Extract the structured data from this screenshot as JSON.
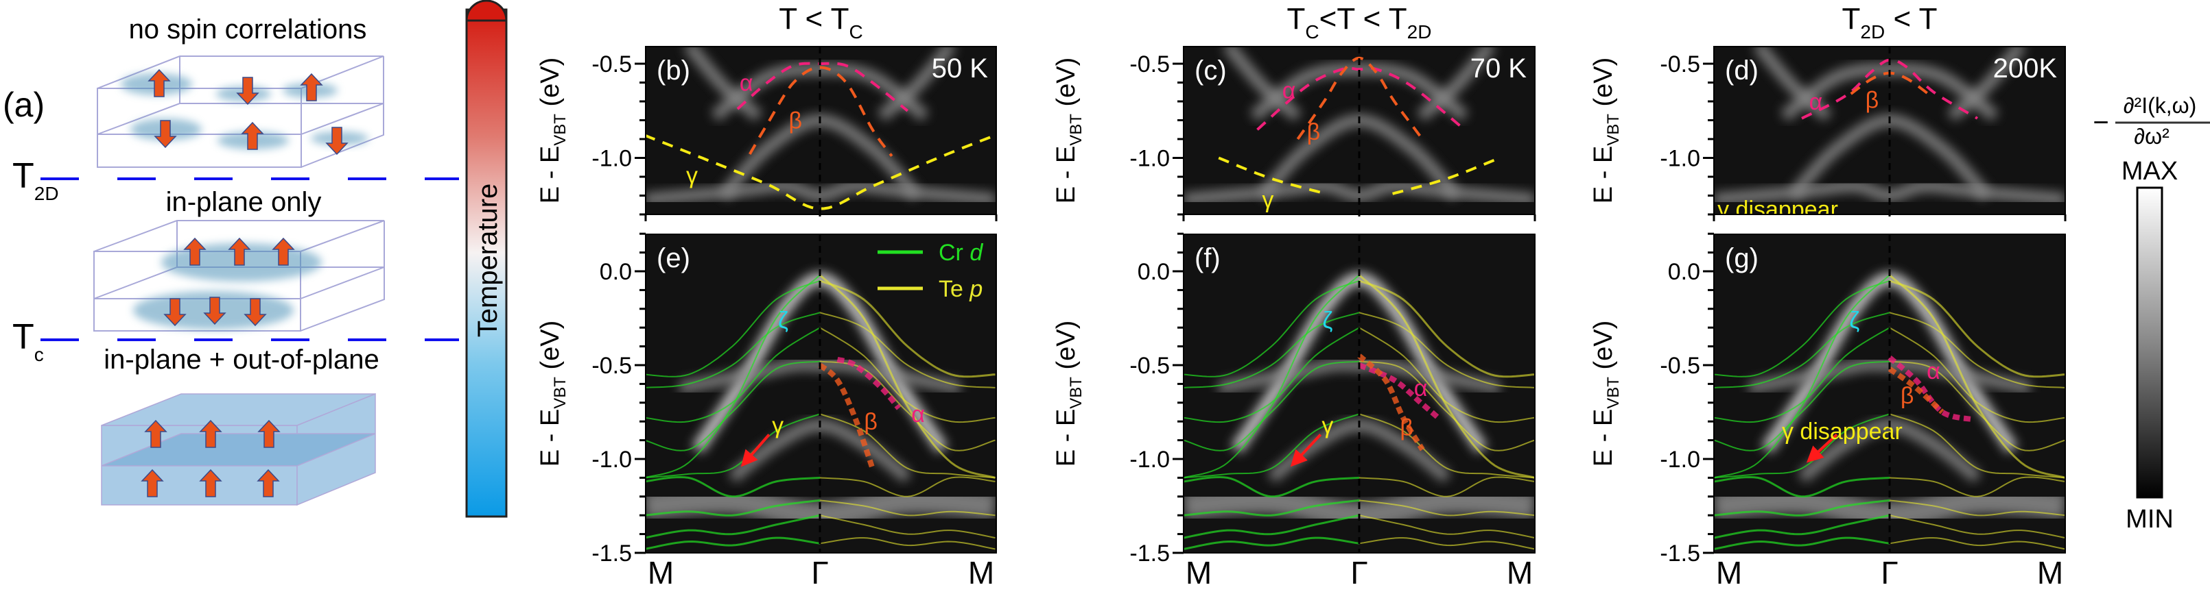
{
  "panel_a": {
    "label": "(a)",
    "phase_top": "no spin correlations",
    "phase_mid": "in-plane only",
    "phase_bottom": "in-plane + out-of-plane",
    "t2d_main": "T",
    "t2d_sub": "2D",
    "tc_main": "T",
    "tc_sub": "c",
    "temperature_bar_label": "Temperature",
    "arrow_color": "#e8521a",
    "cloud_color": "#4f93b8"
  },
  "colorbar": {
    "minus": "−",
    "numerator": "∂²I(k,ω)",
    "denominator": "∂ω²",
    "max_label": "MAX",
    "min_label": "MIN"
  },
  "colors": {
    "alpha": "#f0207a",
    "beta": "#f05a1e",
    "gamma": "#f5ea14",
    "zeta": "#22d8ea",
    "cr_d": "#22e022",
    "te_p": "#e6e62e",
    "arrow": "#ff1a1a"
  },
  "chart_data": {
    "type": "line",
    "xlabel_ticks": [
      "M",
      "Γ",
      "M"
    ],
    "ylabel": {
      "main": "E - E",
      "sub": "VBT",
      "unit": " (eV)"
    },
    "k_range": [
      -1,
      1
    ],
    "top_ylim": [
      -1.3,
      -0.41
    ],
    "bottom_ylim": [
      -1.5,
      0.2
    ],
    "top_yticks": [
      "-0.5",
      "-1.0"
    ],
    "bottom_yticks": [
      "0.0",
      "-0.5",
      "-1.0",
      "-1.5"
    ],
    "legend": [
      {
        "name": "Cr",
        "italic": "d",
        "color_key": "cr_d"
      },
      {
        "name": "Te",
        "italic": "p",
        "color_key": "te_p"
      }
    ],
    "columns": [
      {
        "title": [
          {
            "t": "T < T"
          },
          {
            "t": "C",
            "sub": true
          }
        ],
        "top": {
          "label": "(b)",
          "temp": "50 K",
          "dashed": [
            {
              "name": "alpha",
              "pts": [
                [
                  -0.47,
                  -0.74
                ],
                [
                  -0.3,
                  -0.6
                ],
                [
                  -0.15,
                  -0.51
                ],
                [
                  0,
                  -0.5
                ],
                [
                  0.15,
                  -0.51
                ],
                [
                  0.3,
                  -0.6
                ],
                [
                  0.5,
                  -0.75
                ]
              ]
            },
            {
              "name": "beta",
              "pts": [
                [
                  -0.4,
                  -0.98
                ],
                [
                  -0.3,
                  -0.82
                ],
                [
                  -0.15,
                  -0.6
                ],
                [
                  0,
                  -0.52
                ],
                [
                  0.15,
                  -0.6
                ],
                [
                  0.3,
                  -0.85
                ],
                [
                  0.41,
                  -0.99
                ]
              ]
            },
            {
              "name": "gamma",
              "pts": [
                [
                  -1,
                  -0.88
                ],
                [
                  -0.7,
                  -0.99
                ],
                [
                  -0.3,
                  -1.14
                ],
                [
                  0,
                  -1.27
                ],
                [
                  0.3,
                  -1.15
                ],
                [
                  0.7,
                  -0.99
                ],
                [
                  1,
                  -0.88
                ]
              ]
            }
          ],
          "labels": [
            {
              "t": "α",
              "c": "alpha",
              "k": -0.42,
              "E": -0.6
            },
            {
              "t": "β",
              "c": "beta",
              "k": -0.14,
              "E": -0.8
            },
            {
              "t": "γ",
              "c": "gamma",
              "k": -0.73,
              "E": -1.09
            }
          ]
        },
        "bottom": {
          "label": "(e)",
          "legend": true,
          "dashed": [
            {
              "name": "alpha",
              "pts": [
                [
                  0.1,
                  -0.47
                ],
                [
                  0.2,
                  -0.5
                ],
                [
                  0.35,
                  -0.62
                ],
                [
                  0.45,
                  -0.73
                ]
              ]
            },
            {
              "name": "beta",
              "pts": [
                [
                  0,
                  -0.5
                ],
                [
                  0.1,
                  -0.58
                ],
                [
                  0.2,
                  -0.78
                ],
                [
                  0.3,
                  -1.05
                ]
              ]
            }
          ],
          "labels": [
            {
              "t": "ζ",
              "c": "zeta",
              "k": -0.21,
              "E": -0.26
            },
            {
              "t": "γ",
              "c": "gamma",
              "k": -0.24,
              "E": -0.82
            },
            {
              "t": "α",
              "c": "alpha",
              "k": 0.56,
              "E": -0.76
            },
            {
              "t": "β",
              "c": "beta",
              "k": 0.29,
              "E": -0.8
            }
          ],
          "arrow": [
            [
              -0.29,
              -0.87
            ],
            [
              -0.43,
              -1.02
            ]
          ]
        }
      },
      {
        "title": [
          {
            "t": "T"
          },
          {
            "t": "C",
            "sub": true
          },
          {
            "t": "<T < T"
          },
          {
            "t": "2D",
            "sub": true
          }
        ],
        "top": {
          "label": "(c)",
          "temp": "70 K",
          "dashed": [
            {
              "name": "alpha",
              "pts": [
                [
                  -0.58,
                  -0.85
                ],
                [
                  -0.3,
                  -0.62
                ],
                [
                  -0.1,
                  -0.53
                ],
                [
                  0,
                  -0.53
                ],
                [
                  0.1,
                  -0.53
                ],
                [
                  0.3,
                  -0.62
                ],
                [
                  0.6,
                  -0.85
                ]
              ]
            },
            {
              "name": "beta",
              "pts": [
                [
                  -0.35,
                  -0.9
                ],
                [
                  -0.2,
                  -0.7
                ],
                [
                  -0.1,
                  -0.55
                ],
                [
                  0,
                  -0.47
                ],
                [
                  0.1,
                  -0.55
                ],
                [
                  0.2,
                  -0.7
                ],
                [
                  0.36,
                  -0.9
                ]
              ]
            },
            {
              "name": "gamma",
              "pts": [
                [
                  -0.8,
                  -1.0
                ],
                [
                  -0.5,
                  -1.11
                ],
                [
                  -0.19,
                  -1.19
                ]
              ]
            },
            {
              "name": "gamma",
              "pts": [
                [
                  0.19,
                  -1.19
                ],
                [
                  0.5,
                  -1.11
                ],
                [
                  0.8,
                  -1.0
                ]
              ]
            }
          ],
          "labels": [
            {
              "t": "α",
              "c": "alpha",
              "k": -0.4,
              "E": -0.64
            },
            {
              "t": "β",
              "c": "beta",
              "k": -0.26,
              "E": -0.86
            },
            {
              "t": "γ",
              "c": "gamma",
              "k": -0.52,
              "E": -1.22
            }
          ]
        },
        "bottom": {
          "label": "(f)",
          "dashed": [
            {
              "name": "alpha",
              "pts": [
                [
                  0,
                  -0.5
                ],
                [
                  0.2,
                  -0.58
                ],
                [
                  0.35,
                  -0.7
                ],
                [
                  0.45,
                  -0.78
                ]
              ]
            },
            {
              "name": "beta",
              "pts": [
                [
                  0,
                  -0.45
                ],
                [
                  0.15,
                  -0.58
                ],
                [
                  0.25,
                  -0.78
                ],
                [
                  0.36,
                  -0.95
                ]
              ]
            }
          ],
          "labels": [
            {
              "t": "ζ",
              "c": "zeta",
              "k": -0.18,
              "E": -0.26
            },
            {
              "t": "γ",
              "c": "gamma",
              "k": -0.18,
              "E": -0.82
            },
            {
              "t": "α",
              "c": "alpha",
              "k": 0.35,
              "E": -0.62
            },
            {
              "t": "β",
              "c": "beta",
              "k": 0.27,
              "E": -0.83
            }
          ],
          "arrow": [
            [
              -0.22,
              -0.87
            ],
            [
              -0.37,
              -1.02
            ]
          ]
        }
      },
      {
        "title": [
          {
            "t": "T"
          },
          {
            "t": "2D",
            "sub": true
          },
          {
            "t": " < T"
          }
        ],
        "top": {
          "label": "(d)",
          "temp": "200K",
          "dashed": [
            {
              "name": "alpha",
              "pts": [
                [
                  -0.5,
                  -0.79
                ],
                [
                  -0.25,
                  -0.67
                ],
                [
                  -0.1,
                  -0.54
                ],
                [
                  0,
                  -0.48
                ],
                [
                  0.1,
                  -0.52
                ],
                [
                  0.25,
                  -0.65
                ],
                [
                  0.5,
                  -0.79
                ]
              ]
            },
            {
              "name": "beta",
              "pts": [
                [
                  -0.22,
                  -0.66
                ],
                [
                  -0.1,
                  -0.58
                ],
                [
                  0,
                  -0.55
                ],
                [
                  0.1,
                  -0.58
                ],
                [
                  0.22,
                  -0.66
                ]
              ]
            }
          ],
          "labels": [
            {
              "t": "α",
              "c": "alpha",
              "k": -0.42,
              "E": -0.7
            },
            {
              "t": "β",
              "c": "beta",
              "k": -0.1,
              "E": -0.69
            },
            {
              "t": "γ disappear",
              "c": "gamma",
              "k": -0.98,
              "E": -1.27,
              "left": true
            }
          ]
        },
        "bottom": {
          "label": "(g)",
          "dashed": [
            {
              "name": "alpha",
              "pts": [
                [
                  0,
                  -0.46
                ],
                [
                  0.15,
                  -0.58
                ],
                [
                  0.3,
                  -0.75
                ],
                [
                  0.48,
                  -0.79
                ]
              ]
            },
            {
              "name": "beta",
              "pts": [
                [
                  0,
                  -0.52
                ],
                [
                  0.15,
                  -0.62
                ],
                [
                  0.3,
                  -0.75
                ]
              ]
            }
          ],
          "labels": [
            {
              "t": "ζ",
              "c": "zeta",
              "k": -0.2,
              "E": -0.26
            },
            {
              "t": "γ disappear",
              "c": "gamma",
              "k": -0.27,
              "E": -0.85
            },
            {
              "t": "α",
              "c": "alpha",
              "k": 0.25,
              "E": -0.53
            },
            {
              "t": "β",
              "c": "beta",
              "k": 0.1,
              "E": -0.66
            }
          ],
          "arrow": [
            [
              -0.3,
              -0.87
            ],
            [
              -0.45,
              -1.0
            ]
          ]
        }
      }
    ],
    "intensity_ridges_top": [
      [
        [
          -1,
          -1.22
        ],
        [
          -0.5,
          -1.18
        ],
        [
          -0.2,
          -1.15
        ],
        [
          0,
          -1.2
        ],
        [
          0.2,
          -1.15
        ],
        [
          0.5,
          -1.18
        ],
        [
          1,
          -1.22
        ]
      ],
      [
        [
          -0.55,
          -1.2
        ],
        [
          -0.3,
          -0.95
        ],
        [
          0,
          -0.8
        ],
        [
          0.3,
          -0.95
        ],
        [
          0.55,
          -1.2
        ]
      ],
      [
        [
          -0.6,
          -0.78
        ],
        [
          -0.3,
          -0.57
        ],
        [
          0,
          -0.53
        ],
        [
          0.3,
          -0.57
        ],
        [
          0.6,
          -0.78
        ]
      ],
      [
        [
          -0.75,
          -0.4
        ],
        [
          -0.55,
          -0.62
        ],
        [
          -0.35,
          -0.78
        ]
      ],
      [
        [
          0.75,
          -0.4
        ],
        [
          0.55,
          -0.62
        ],
        [
          0.35,
          -0.78
        ]
      ]
    ],
    "intensity_ridges_bottom": [
      [
        [
          -0.7,
          -0.95
        ],
        [
          -0.45,
          -0.6
        ],
        [
          -0.2,
          -0.2
        ],
        [
          0,
          -0.04
        ],
        [
          0.2,
          -0.2
        ],
        [
          0.45,
          -0.6
        ],
        [
          0.7,
          -0.95
        ]
      ],
      [
        [
          -0.8,
          -0.62
        ],
        [
          -0.4,
          -0.55
        ],
        [
          -0.15,
          -0.5
        ],
        [
          0,
          -0.5
        ],
        [
          0.15,
          -0.5
        ],
        [
          0.4,
          -0.55
        ],
        [
          0.8,
          -0.62
        ]
      ],
      [
        [
          -0.5,
          -1.1
        ],
        [
          -0.25,
          -0.92
        ],
        [
          0,
          -0.82
        ],
        [
          0.25,
          -0.92
        ],
        [
          0.5,
          -1.1
        ]
      ],
      [
        [
          -1,
          -1.25
        ],
        [
          -0.5,
          -1.22
        ],
        [
          0,
          -1.3
        ],
        [
          0.5,
          -1.22
        ],
        [
          1,
          -1.25
        ]
      ]
    ],
    "dft_bands_k": [
      0,
      0.25,
      0.5,
      0.75,
      1
    ],
    "dft_bands": [
      [
        -0.02,
        -0.25,
        -0.72,
        -1.02,
        -1.1
      ],
      [
        -0.05,
        -0.15,
        -0.4,
        -0.55,
        -0.55
      ],
      [
        -0.22,
        -0.3,
        -0.5,
        -0.6,
        -0.62
      ],
      [
        -0.3,
        -0.45,
        -0.7,
        -0.8,
        -0.78
      ],
      [
        -0.48,
        -0.52,
        -0.75,
        -0.95,
        -0.9
      ],
      [
        -0.76,
        -0.85,
        -1.05,
        -1.08,
        -1.1
      ],
      [
        -1.1,
        -1.12,
        -1.2,
        -1.1,
        -1.12
      ],
      [
        -1.22,
        -1.25,
        -1.3,
        -1.28,
        -1.3
      ],
      [
        -1.3,
        -1.35,
        -1.4,
        -1.38,
        -1.42
      ],
      [
        -1.45,
        -1.42,
        -1.46,
        -1.44,
        -1.48
      ]
    ]
  }
}
